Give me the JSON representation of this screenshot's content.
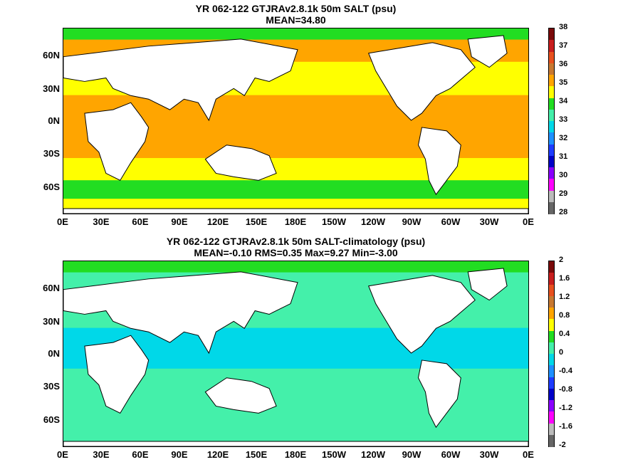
{
  "panels": [
    {
      "title_line1": "YR 062-122 GTJRAv2.8.1k 50m SALT (psu)",
      "title_line2": "MEAN=34.80",
      "lat_labels": [
        "60N",
        "30N",
        "0N",
        "30S",
        "60S"
      ],
      "lon_labels": [
        "0E",
        "30E",
        "60E",
        "90E",
        "120E",
        "150E",
        "180E",
        "150W",
        "120W",
        "90W",
        "60W",
        "30W",
        "0E"
      ],
      "colorbar_labels": [
        "38",
        "37",
        "36",
        "35",
        "34",
        "33",
        "32",
        "31",
        "30",
        "29",
        "28"
      ],
      "colorbar_colors": [
        "#7a0a0a",
        "#c81e1e",
        "#e8501e",
        "#c87830",
        "#ffa500",
        "#ffff00",
        "#22dd22",
        "#44f0aa",
        "#00d8e8",
        "#1e90ff",
        "#1e3cff",
        "#0000c8",
        "#8a00ff",
        "#ff00ff",
        "#bbbbbb",
        "#666666"
      ],
      "bands": [
        {
          "name": "arctic",
          "color": "#22dd22"
        },
        {
          "name": "north-subpolar",
          "color": "#ffa500"
        },
        {
          "name": "north-mid",
          "color": "#ffff00"
        },
        {
          "name": "tropics",
          "color": "#ffa500"
        },
        {
          "name": "south-subtropics",
          "color": "#ffa500"
        },
        {
          "name": "south-mid",
          "color": "#ffff00"
        },
        {
          "name": "southern-ocean",
          "color": "#22dd22"
        },
        {
          "name": "antarctic-margin",
          "color": "#ffff00"
        }
      ]
    },
    {
      "title_line1": "YR 062-122 GTJRAv2.8.1k 50m SALT-climatology (psu)",
      "title_line2": "MEAN=-0.10   RMS=0.35   Max=9.27   Min=-3.00",
      "lat_labels": [
        "60N",
        "30N",
        "0N",
        "30S",
        "60S"
      ],
      "lon_labels": [
        "0E",
        "30E",
        "60E",
        "90E",
        "120E",
        "150E",
        "180E",
        "150W",
        "120W",
        "90W",
        "60W",
        "30W",
        "0E"
      ],
      "colorbar_labels": [
        "2",
        "1.6",
        "1.2",
        "0.8",
        "0.4",
        "0",
        "-0.4",
        "-0.8",
        "-1.2",
        "-1.6",
        "-2"
      ],
      "colorbar_colors": [
        "#7a0a0a",
        "#c81e1e",
        "#e8501e",
        "#c87830",
        "#ffa500",
        "#ffff00",
        "#22dd22",
        "#44f0aa",
        "#00d8e8",
        "#1e90ff",
        "#1e3cff",
        "#0000c8",
        "#8a00ff",
        "#ff00ff",
        "#bbbbbb",
        "#666666"
      ],
      "bands": [
        {
          "name": "arctic",
          "color": "#22dd22"
        },
        {
          "name": "north-subpolar",
          "color": "#44f0aa"
        },
        {
          "name": "north-mid",
          "color": "#44f0aa"
        },
        {
          "name": "tropics",
          "color": "#00d8e8"
        },
        {
          "name": "south-subtropics",
          "color": "#44f0aa"
        },
        {
          "name": "south-mid",
          "color": "#44f0aa"
        },
        {
          "name": "southern-ocean",
          "color": "#44f0aa"
        },
        {
          "name": "antarctic-margin",
          "color": "#44f0aa"
        }
      ]
    }
  ],
  "land_color": "#ffffff",
  "coastline_color": "#000000"
}
